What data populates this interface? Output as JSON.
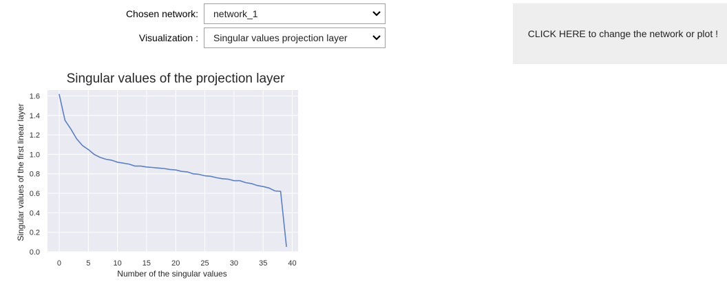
{
  "controls": {
    "network_label": "Chosen network:",
    "network_value": "network_1",
    "visualization_label": "Visualization :",
    "visualization_value": "Singular values projection layer"
  },
  "action_button": {
    "label": "CLICK HERE to change the network or plot !"
  },
  "chart_data": {
    "type": "line",
    "title": "Singular values of the projection layer",
    "xlabel": "Number of the singular values",
    "ylabel": "Singular values of the first linear layer",
    "xlim": [
      -2,
      41
    ],
    "ylim": [
      0,
      1.66
    ],
    "xticks": [
      0,
      5,
      10,
      15,
      20,
      25,
      30,
      35,
      40
    ],
    "yticks": [
      0.0,
      0.2,
      0.4,
      0.6,
      0.8,
      1.0,
      1.2,
      1.4,
      1.6
    ],
    "ytick_labels": [
      "0.0",
      "0.2",
      "0.4",
      "0.6",
      "0.8",
      "1.0",
      "1.2",
      "1.4",
      "1.6"
    ],
    "grid": true,
    "line_color": "#5b7fc0",
    "background_color": "#eaeaf2",
    "series": [
      {
        "x": [
          0,
          1,
          2,
          3,
          4,
          5,
          6,
          7,
          8,
          9,
          10,
          11,
          12,
          13,
          14,
          15,
          16,
          17,
          18,
          19,
          20,
          21,
          22,
          23,
          24,
          25,
          26,
          27,
          28,
          29,
          30,
          31,
          32,
          33,
          34,
          35,
          36,
          37,
          38,
          39
        ],
        "y": [
          1.62,
          1.35,
          1.26,
          1.16,
          1.09,
          1.05,
          1.0,
          0.97,
          0.95,
          0.94,
          0.92,
          0.91,
          0.9,
          0.88,
          0.88,
          0.87,
          0.865,
          0.86,
          0.855,
          0.845,
          0.84,
          0.825,
          0.82,
          0.8,
          0.795,
          0.78,
          0.775,
          0.76,
          0.75,
          0.745,
          0.73,
          0.73,
          0.71,
          0.7,
          0.68,
          0.67,
          0.655,
          0.625,
          0.62,
          0.05
        ]
      }
    ]
  }
}
